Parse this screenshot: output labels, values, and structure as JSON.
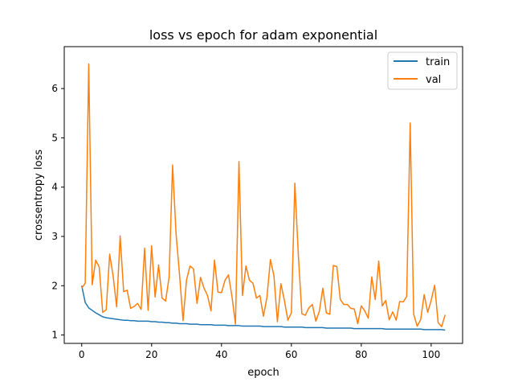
{
  "chart_data": {
    "type": "line",
    "title": "loss vs epoch for adam exponential",
    "xlabel": "epoch",
    "ylabel": "crossentropy loss",
    "xlim": [
      -5,
      109
    ],
    "ylim": [
      0.83,
      6.85
    ],
    "xticks": [
      0,
      20,
      40,
      60,
      80,
      100
    ],
    "yticks": [
      1,
      2,
      3,
      4,
      5,
      6
    ],
    "grid": false,
    "legend_position": "top-right",
    "series": [
      {
        "name": "train",
        "color": "#1f77b4",
        "x": [
          0,
          1,
          2,
          3,
          4,
          5,
          6,
          7,
          8,
          9,
          10,
          11,
          12,
          13,
          14,
          15,
          16,
          17,
          18,
          19,
          20,
          21,
          22,
          23,
          24,
          25,
          26,
          27,
          28,
          29,
          30,
          31,
          32,
          33,
          34,
          35,
          36,
          37,
          38,
          39,
          40,
          41,
          42,
          43,
          44,
          45,
          46,
          47,
          48,
          49,
          50,
          51,
          52,
          53,
          54,
          55,
          56,
          57,
          58,
          59,
          60,
          61,
          62,
          63,
          64,
          65,
          66,
          67,
          68,
          69,
          70,
          71,
          72,
          73,
          74,
          75,
          76,
          77,
          78,
          79,
          80,
          81,
          82,
          83,
          84,
          85,
          86,
          87,
          88,
          89,
          90,
          91,
          92,
          93,
          94,
          95,
          96,
          97,
          98,
          99,
          100,
          101,
          102,
          103,
          104
        ],
        "y": [
          2.0,
          1.66,
          1.55,
          1.5,
          1.45,
          1.41,
          1.37,
          1.35,
          1.34,
          1.33,
          1.32,
          1.31,
          1.3,
          1.3,
          1.29,
          1.29,
          1.28,
          1.28,
          1.28,
          1.28,
          1.27,
          1.27,
          1.26,
          1.26,
          1.25,
          1.25,
          1.24,
          1.24,
          1.23,
          1.23,
          1.23,
          1.22,
          1.22,
          1.22,
          1.21,
          1.21,
          1.21,
          1.21,
          1.2,
          1.2,
          1.2,
          1.2,
          1.19,
          1.19,
          1.19,
          1.19,
          1.18,
          1.18,
          1.18,
          1.18,
          1.18,
          1.18,
          1.17,
          1.17,
          1.17,
          1.17,
          1.17,
          1.17,
          1.16,
          1.16,
          1.16,
          1.16,
          1.16,
          1.16,
          1.15,
          1.15,
          1.15,
          1.15,
          1.15,
          1.15,
          1.14,
          1.14,
          1.14,
          1.14,
          1.14,
          1.14,
          1.14,
          1.14,
          1.13,
          1.13,
          1.13,
          1.13,
          1.13,
          1.13,
          1.13,
          1.13,
          1.13,
          1.12,
          1.12,
          1.12,
          1.12,
          1.12,
          1.12,
          1.12,
          1.12,
          1.12,
          1.12,
          1.12,
          1.11,
          1.11,
          1.11,
          1.11,
          1.11,
          1.11,
          1.1
        ]
      },
      {
        "name": "val",
        "color": "#ff7f0e",
        "x": [
          0,
          1,
          2,
          3,
          4,
          5,
          6,
          7,
          8,
          9,
          10,
          11,
          12,
          13,
          14,
          15,
          16,
          17,
          18,
          19,
          20,
          21,
          22,
          23,
          24,
          25,
          26,
          27,
          28,
          29,
          30,
          31,
          32,
          33,
          34,
          35,
          36,
          37,
          38,
          39,
          40,
          41,
          42,
          43,
          44,
          45,
          46,
          47,
          48,
          49,
          50,
          51,
          52,
          53,
          54,
          55,
          56,
          57,
          58,
          59,
          60,
          61,
          62,
          63,
          64,
          65,
          66,
          67,
          68,
          69,
          70,
          71,
          72,
          73,
          74,
          75,
          76,
          77,
          78,
          79,
          80,
          81,
          82,
          83,
          84,
          85,
          86,
          87,
          88,
          89,
          90,
          91,
          92,
          93,
          94,
          95,
          96,
          97,
          98,
          99,
          100,
          101,
          102,
          103,
          104
        ],
        "y": [
          1.95,
          2.05,
          6.5,
          2.02,
          2.52,
          2.38,
          1.46,
          1.51,
          2.64,
          2.19,
          1.57,
          3.01,
          1.88,
          1.91,
          1.54,
          1.58,
          1.64,
          1.52,
          2.76,
          1.5,
          2.81,
          1.77,
          2.42,
          1.75,
          1.69,
          2.17,
          4.45,
          3.05,
          2.22,
          1.29,
          2.12,
          2.4,
          2.34,
          1.64,
          2.17,
          1.95,
          1.8,
          1.49,
          2.52,
          1.87,
          1.86,
          2.11,
          2.22,
          1.78,
          1.22,
          4.52,
          1.8,
          2.4,
          2.11,
          2.05,
          1.75,
          1.8,
          1.38,
          1.76,
          2.53,
          2.21,
          1.27,
          2.04,
          1.7,
          1.3,
          1.45,
          4.08,
          2.61,
          1.43,
          1.4,
          1.55,
          1.62,
          1.28,
          1.48,
          1.95,
          1.45,
          1.42,
          2.41,
          2.39,
          1.72,
          1.62,
          1.62,
          1.54,
          1.53,
          1.23,
          1.59,
          1.49,
          1.34,
          2.18,
          1.72,
          2.5,
          1.59,
          1.7,
          1.31,
          1.47,
          1.3,
          1.68,
          1.67,
          1.78,
          5.3,
          1.42,
          1.18,
          1.31,
          1.82,
          1.46,
          1.7,
          2.01,
          1.25,
          1.17,
          1.41
        ]
      }
    ]
  }
}
